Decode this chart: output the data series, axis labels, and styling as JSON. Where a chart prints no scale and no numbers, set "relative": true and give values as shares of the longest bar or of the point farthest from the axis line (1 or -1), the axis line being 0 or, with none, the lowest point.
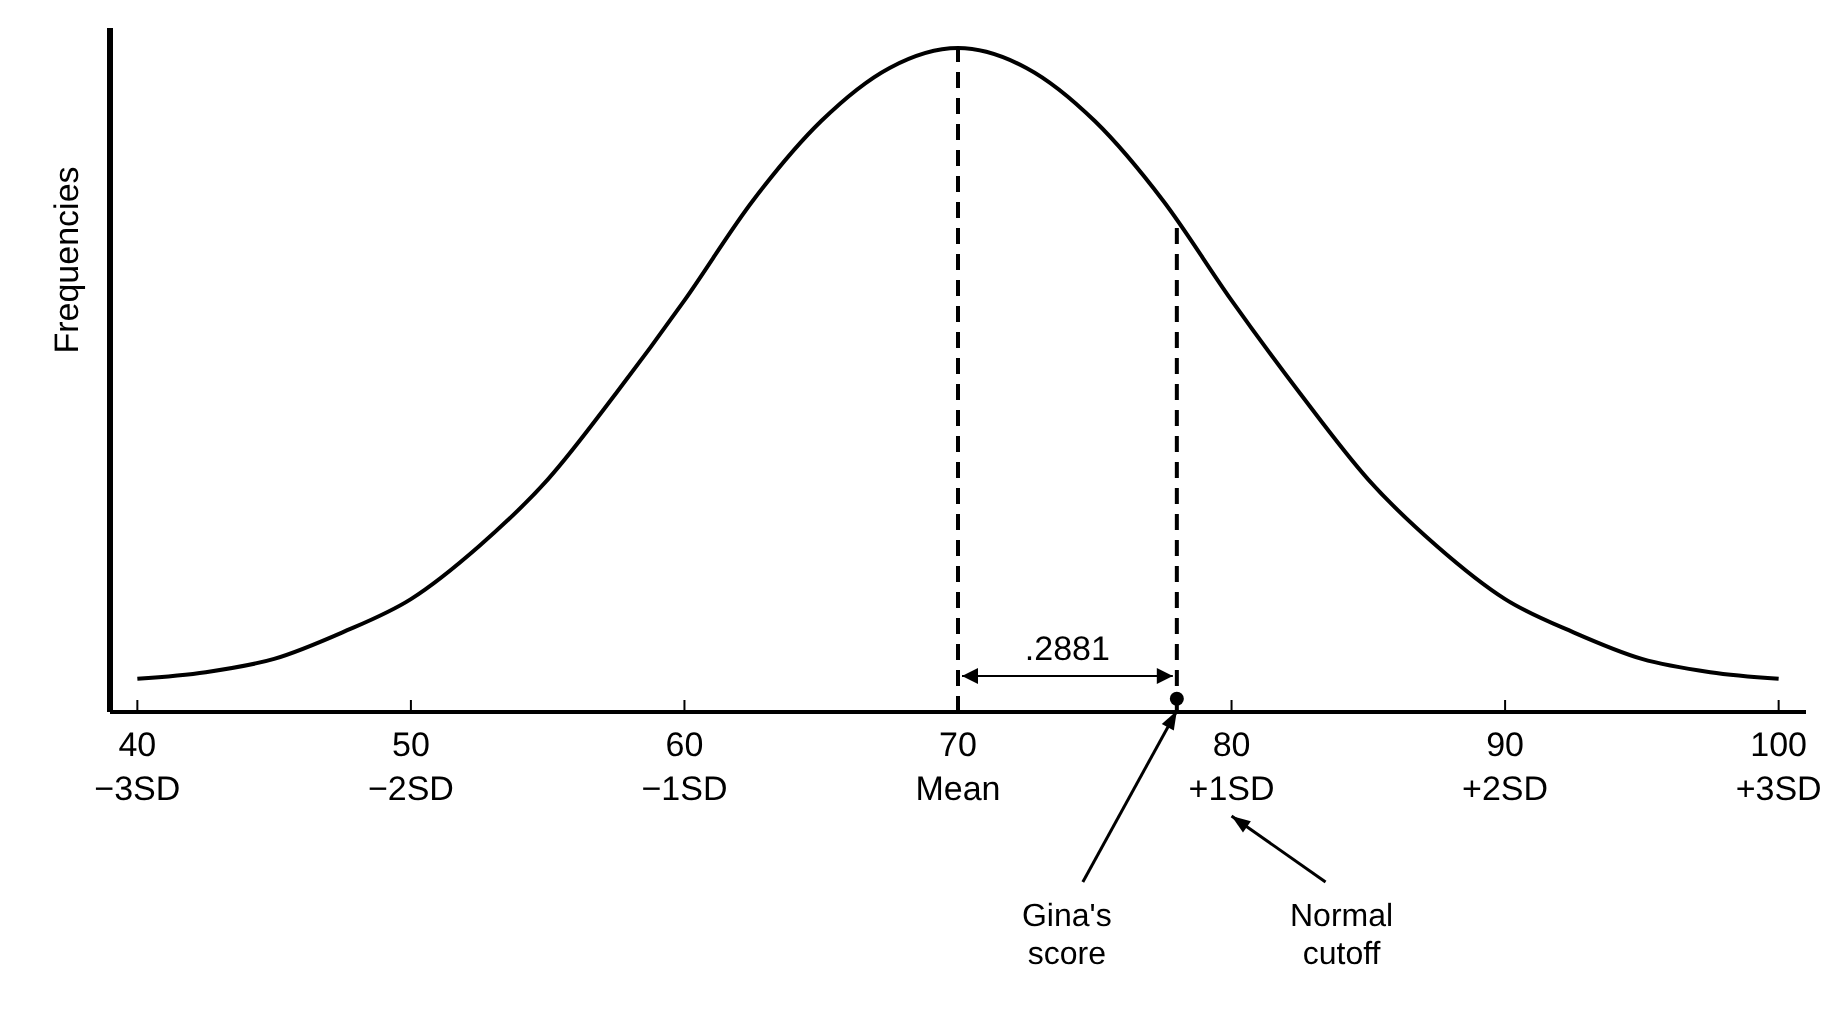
{
  "chart_data": {
    "type": "line",
    "ylabel": "Frequencies",
    "relative": true,
    "xlim": [
      39,
      101
    ],
    "xticks": [
      40,
      50,
      60,
      70,
      80,
      90,
      100
    ],
    "series": [
      {
        "color": "#000000",
        "x": [
          40,
          42.5,
          45,
          47.5,
          50,
          52.5,
          55,
          57.5,
          60,
          62.5,
          65,
          67.5,
          70,
          72.5,
          75,
          77.5,
          80,
          82.5,
          85,
          87.5,
          90,
          92.5,
          95,
          97.5,
          100
        ],
        "values": [
          0.05,
          0.06,
          0.08,
          0.12,
          0.17,
          0.25,
          0.35,
          0.48,
          0.62,
          0.77,
          0.89,
          0.97,
          1,
          0.97,
          0.89,
          0.77,
          0.62,
          0.48,
          0.35,
          0.25,
          0.17,
          0.12,
          0.08,
          0.06,
          0.05
        ]
      },
      {
        "type": "scatter",
        "color": "#000000",
        "x": [
          78
        ],
        "values": [
          0.02
        ],
        "marker": "circle"
      }
    ],
    "ref_lines": [
      {
        "axis": "x",
        "value": 70,
        "line_style": "dashed"
      },
      {
        "axis": "x",
        "value": 78,
        "line_style": "dashed"
      }
    ],
    "annotations": [
      "−3SD",
      "−2SD",
      "−1SD",
      "Mean",
      "+1SD",
      "+2SD",
      "+3SD",
      ".2881",
      {
        "text": "Gina's\nscore",
        "x": 78,
        "y": 0.02
      },
      "Normal\ncutoff"
    ]
  }
}
